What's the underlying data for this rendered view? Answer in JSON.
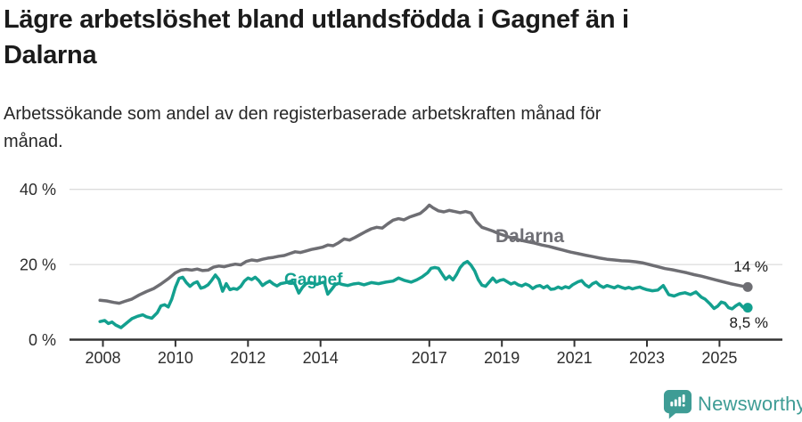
{
  "header": {
    "title_lines": [
      "Lägre arbetslöshet bland utlandsfödda i Gagnef än i",
      "Dalarna"
    ],
    "subtitle_lines": [
      "Arbetssökande som andel av den registerbaserade arbetskraften månad för",
      "månad."
    ]
  },
  "footer": {
    "brand": "Newsworthy",
    "brand_color": "#3e9c95"
  },
  "chart_data": {
    "type": "line",
    "title": "Lägre arbetslöshet bland utlandsfödda i Gagnef än i Dalarna",
    "subtitle": "Arbetssökande som andel av den registerbaserade arbetskraften månad för månad.",
    "xlabel": "",
    "ylabel": "",
    "ylim": [
      0,
      40
    ],
    "grid": "horizontal",
    "legend_position": "inline-labels",
    "y_axis": {
      "ticks": [
        {
          "value": 0,
          "label": "0 %"
        },
        {
          "value": 20,
          "label": "20 %"
        },
        {
          "value": 40,
          "label": "40 %"
        }
      ]
    },
    "x_axis": {
      "ticks": [
        {
          "year": 2008,
          "label": "2008"
        },
        {
          "year": 2010,
          "label": "2010"
        },
        {
          "year": 2012,
          "label": "2012"
        },
        {
          "year": 2014,
          "label": "2014"
        },
        {
          "year": 2017,
          "label": "2017"
        },
        {
          "year": 2019,
          "label": "2019"
        },
        {
          "year": 2021,
          "label": "2021"
        },
        {
          "year": 2023,
          "label": "2023"
        },
        {
          "year": 2025,
          "label": "2025"
        }
      ]
    },
    "series": [
      {
        "id": "dalarna",
        "name": "Dalarna",
        "color": "#6e6e73",
        "end_label": "14 %",
        "end_value": 14.0,
        "points": [
          [
            2007.92,
            10.5
          ],
          [
            2008.1,
            10.3
          ],
          [
            2008.3,
            9.9
          ],
          [
            2008.45,
            9.7
          ],
          [
            2008.6,
            10.2
          ],
          [
            2008.8,
            10.8
          ],
          [
            2009.0,
            11.9
          ],
          [
            2009.2,
            12.8
          ],
          [
            2009.4,
            13.6
          ],
          [
            2009.6,
            14.8
          ],
          [
            2009.8,
            16.2
          ],
          [
            2010.0,
            17.8
          ],
          [
            2010.15,
            18.5
          ],
          [
            2010.3,
            18.7
          ],
          [
            2010.45,
            18.5
          ],
          [
            2010.6,
            18.8
          ],
          [
            2010.75,
            18.4
          ],
          [
            2010.9,
            18.5
          ],
          [
            2011.05,
            19.3
          ],
          [
            2011.2,
            19.6
          ],
          [
            2011.35,
            19.4
          ],
          [
            2011.5,
            19.8
          ],
          [
            2011.65,
            20.1
          ],
          [
            2011.8,
            19.9
          ],
          [
            2011.95,
            20.8
          ],
          [
            2012.1,
            21.2
          ],
          [
            2012.25,
            21.0
          ],
          [
            2012.4,
            21.4
          ],
          [
            2012.55,
            21.7
          ],
          [
            2012.7,
            21.9
          ],
          [
            2012.85,
            22.2
          ],
          [
            2013.0,
            22.4
          ],
          [
            2013.15,
            22.9
          ],
          [
            2013.3,
            23.4
          ],
          [
            2013.45,
            23.2
          ],
          [
            2013.6,
            23.6
          ],
          [
            2013.75,
            24.0
          ],
          [
            2013.9,
            24.3
          ],
          [
            2014.05,
            24.6
          ],
          [
            2014.2,
            25.2
          ],
          [
            2014.35,
            25.0
          ],
          [
            2014.5,
            25.8
          ],
          [
            2014.65,
            26.8
          ],
          [
            2014.8,
            26.5
          ],
          [
            2014.95,
            27.2
          ],
          [
            2015.1,
            28.0
          ],
          [
            2015.25,
            28.8
          ],
          [
            2015.4,
            29.5
          ],
          [
            2015.55,
            29.9
          ],
          [
            2015.7,
            29.7
          ],
          [
            2015.85,
            30.8
          ],
          [
            2016.0,
            31.8
          ],
          [
            2016.15,
            32.2
          ],
          [
            2016.3,
            31.9
          ],
          [
            2016.45,
            32.6
          ],
          [
            2016.6,
            33.1
          ],
          [
            2016.75,
            33.6
          ],
          [
            2016.9,
            34.8
          ],
          [
            2017.0,
            35.8
          ],
          [
            2017.1,
            35.1
          ],
          [
            2017.25,
            34.3
          ],
          [
            2017.4,
            34.0
          ],
          [
            2017.55,
            34.4
          ],
          [
            2017.7,
            34.1
          ],
          [
            2017.85,
            33.8
          ],
          [
            2018.0,
            34.1
          ],
          [
            2018.15,
            33.7
          ],
          [
            2018.3,
            31.4
          ],
          [
            2018.45,
            29.9
          ],
          [
            2018.6,
            29.4
          ],
          [
            2018.75,
            28.9
          ],
          [
            2018.9,
            28.3
          ],
          [
            2019.1,
            27.6
          ],
          [
            2019.3,
            27.0
          ],
          [
            2019.5,
            26.5
          ],
          [
            2019.7,
            26.1
          ],
          [
            2019.9,
            25.7
          ],
          [
            2020.1,
            25.2
          ],
          [
            2020.3,
            24.8
          ],
          [
            2020.5,
            24.3
          ],
          [
            2020.7,
            23.8
          ],
          [
            2020.9,
            23.3
          ],
          [
            2021.1,
            22.9
          ],
          [
            2021.3,
            22.5
          ],
          [
            2021.5,
            22.1
          ],
          [
            2021.7,
            21.7
          ],
          [
            2021.9,
            21.4
          ],
          [
            2022.1,
            21.2
          ],
          [
            2022.3,
            21.0
          ],
          [
            2022.5,
            20.9
          ],
          [
            2022.7,
            20.7
          ],
          [
            2022.9,
            20.4
          ],
          [
            2023.1,
            19.9
          ],
          [
            2023.3,
            19.4
          ],
          [
            2023.5,
            18.9
          ],
          [
            2023.7,
            18.6
          ],
          [
            2023.9,
            18.2
          ],
          [
            2024.1,
            17.8
          ],
          [
            2024.3,
            17.3
          ],
          [
            2024.5,
            16.9
          ],
          [
            2024.7,
            16.4
          ],
          [
            2024.9,
            15.9
          ],
          [
            2025.1,
            15.4
          ],
          [
            2025.3,
            14.9
          ],
          [
            2025.5,
            14.5
          ],
          [
            2025.65,
            14.2
          ],
          [
            2025.78,
            14.0
          ]
        ]
      },
      {
        "id": "gagnef",
        "name": "Gagnef",
        "color": "#13a08f",
        "end_label": "8,5 %",
        "end_value": 8.5,
        "points": [
          [
            2007.92,
            4.8
          ],
          [
            2008.05,
            5.1
          ],
          [
            2008.15,
            4.3
          ],
          [
            2008.25,
            4.7
          ],
          [
            2008.35,
            3.9
          ],
          [
            2008.5,
            3.2
          ],
          [
            2008.65,
            4.4
          ],
          [
            2008.8,
            5.6
          ],
          [
            2008.95,
            6.2
          ],
          [
            2009.1,
            6.6
          ],
          [
            2009.2,
            6.1
          ],
          [
            2009.35,
            5.7
          ],
          [
            2009.5,
            7.2
          ],
          [
            2009.6,
            9.0
          ],
          [
            2009.7,
            9.3
          ],
          [
            2009.8,
            8.7
          ],
          [
            2009.9,
            10.8
          ],
          [
            2010.0,
            14.0
          ],
          [
            2010.1,
            16.3
          ],
          [
            2010.2,
            16.6
          ],
          [
            2010.3,
            15.2
          ],
          [
            2010.4,
            14.2
          ],
          [
            2010.5,
            15.0
          ],
          [
            2010.6,
            15.4
          ],
          [
            2010.7,
            13.7
          ],
          [
            2010.8,
            14.0
          ],
          [
            2010.9,
            14.6
          ],
          [
            2011.0,
            15.8
          ],
          [
            2011.1,
            17.2
          ],
          [
            2011.2,
            16.0
          ],
          [
            2011.3,
            12.9
          ],
          [
            2011.4,
            14.9
          ],
          [
            2011.5,
            13.3
          ],
          [
            2011.6,
            13.6
          ],
          [
            2011.7,
            13.4
          ],
          [
            2011.8,
            14.2
          ],
          [
            2011.9,
            15.6
          ],
          [
            2012.0,
            16.4
          ],
          [
            2012.1,
            16.0
          ],
          [
            2012.2,
            16.6
          ],
          [
            2012.3,
            15.7
          ],
          [
            2012.4,
            14.4
          ],
          [
            2012.5,
            15.1
          ],
          [
            2012.6,
            15.6
          ],
          [
            2012.7,
            14.8
          ],
          [
            2012.8,
            14.3
          ],
          [
            2012.9,
            14.9
          ],
          [
            2013.0,
            15.1
          ],
          [
            2013.1,
            15.3
          ],
          [
            2013.2,
            15.6
          ],
          [
            2013.3,
            14.7
          ],
          [
            2013.4,
            12.4
          ],
          [
            2013.5,
            13.9
          ],
          [
            2013.6,
            14.9
          ],
          [
            2013.7,
            15.2
          ],
          [
            2013.8,
            15.0
          ],
          [
            2013.9,
            14.7
          ],
          [
            2014.0,
            15.1
          ],
          [
            2014.1,
            15.3
          ],
          [
            2014.2,
            12.1
          ],
          [
            2014.3,
            13.3
          ],
          [
            2014.4,
            14.6
          ],
          [
            2014.5,
            15.0
          ],
          [
            2014.6,
            14.7
          ],
          [
            2014.75,
            14.4
          ],
          [
            2014.9,
            14.8
          ],
          [
            2015.05,
            15.0
          ],
          [
            2015.2,
            14.6
          ],
          [
            2015.4,
            15.2
          ],
          [
            2015.6,
            14.9
          ],
          [
            2015.8,
            15.3
          ],
          [
            2016.0,
            15.6
          ],
          [
            2016.15,
            16.4
          ],
          [
            2016.3,
            15.8
          ],
          [
            2016.5,
            15.3
          ],
          [
            2016.65,
            15.9
          ],
          [
            2016.8,
            16.7
          ],
          [
            2016.95,
            17.8
          ],
          [
            2017.05,
            19.0
          ],
          [
            2017.15,
            19.2
          ],
          [
            2017.25,
            19.0
          ],
          [
            2017.35,
            17.5
          ],
          [
            2017.45,
            16.1
          ],
          [
            2017.55,
            16.9
          ],
          [
            2017.65,
            15.9
          ],
          [
            2017.75,
            17.3
          ],
          [
            2017.85,
            19.2
          ],
          [
            2017.95,
            20.3
          ],
          [
            2018.05,
            20.8
          ],
          [
            2018.15,
            19.8
          ],
          [
            2018.25,
            18.3
          ],
          [
            2018.35,
            16.0
          ],
          [
            2018.45,
            14.5
          ],
          [
            2018.55,
            14.2
          ],
          [
            2018.65,
            15.3
          ],
          [
            2018.75,
            16.4
          ],
          [
            2018.85,
            15.3
          ],
          [
            2018.95,
            15.8
          ],
          [
            2019.05,
            16.0
          ],
          [
            2019.15,
            15.4
          ],
          [
            2019.25,
            14.8
          ],
          [
            2019.35,
            15.2
          ],
          [
            2019.45,
            14.6
          ],
          [
            2019.55,
            14.3
          ],
          [
            2019.65,
            14.8
          ],
          [
            2019.75,
            14.4
          ],
          [
            2019.85,
            13.6
          ],
          [
            2019.95,
            14.2
          ],
          [
            2020.05,
            14.4
          ],
          [
            2020.15,
            13.8
          ],
          [
            2020.25,
            14.3
          ],
          [
            2020.35,
            13.4
          ],
          [
            2020.45,
            13.5
          ],
          [
            2020.55,
            14.0
          ],
          [
            2020.65,
            13.6
          ],
          [
            2020.75,
            14.1
          ],
          [
            2020.85,
            13.8
          ],
          [
            2020.95,
            14.6
          ],
          [
            2021.1,
            15.4
          ],
          [
            2021.2,
            15.7
          ],
          [
            2021.3,
            14.6
          ],
          [
            2021.4,
            14.0
          ],
          [
            2021.5,
            14.9
          ],
          [
            2021.6,
            15.3
          ],
          [
            2021.7,
            14.4
          ],
          [
            2021.8,
            13.9
          ],
          [
            2021.9,
            14.4
          ],
          [
            2022.0,
            14.1
          ],
          [
            2022.1,
            13.8
          ],
          [
            2022.2,
            14.3
          ],
          [
            2022.3,
            13.9
          ],
          [
            2022.4,
            13.6
          ],
          [
            2022.5,
            13.9
          ],
          [
            2022.6,
            13.5
          ],
          [
            2022.7,
            13.8
          ],
          [
            2022.8,
            14.0
          ],
          [
            2022.9,
            13.6
          ],
          [
            2023.0,
            13.3
          ],
          [
            2023.15,
            13.0
          ],
          [
            2023.3,
            13.2
          ],
          [
            2023.45,
            14.4
          ],
          [
            2023.6,
            12.0
          ],
          [
            2023.75,
            11.6
          ],
          [
            2023.9,
            12.2
          ],
          [
            2024.05,
            12.5
          ],
          [
            2024.2,
            12.0
          ],
          [
            2024.35,
            12.7
          ],
          [
            2024.5,
            11.3
          ],
          [
            2024.6,
            10.8
          ],
          [
            2024.75,
            9.4
          ],
          [
            2024.85,
            8.3
          ],
          [
            2024.95,
            8.9
          ],
          [
            2025.05,
            10.0
          ],
          [
            2025.15,
            9.7
          ],
          [
            2025.25,
            8.5
          ],
          [
            2025.35,
            8.2
          ],
          [
            2025.45,
            9.0
          ],
          [
            2025.55,
            9.6
          ],
          [
            2025.65,
            8.6
          ],
          [
            2025.78,
            8.5
          ]
        ]
      }
    ]
  }
}
